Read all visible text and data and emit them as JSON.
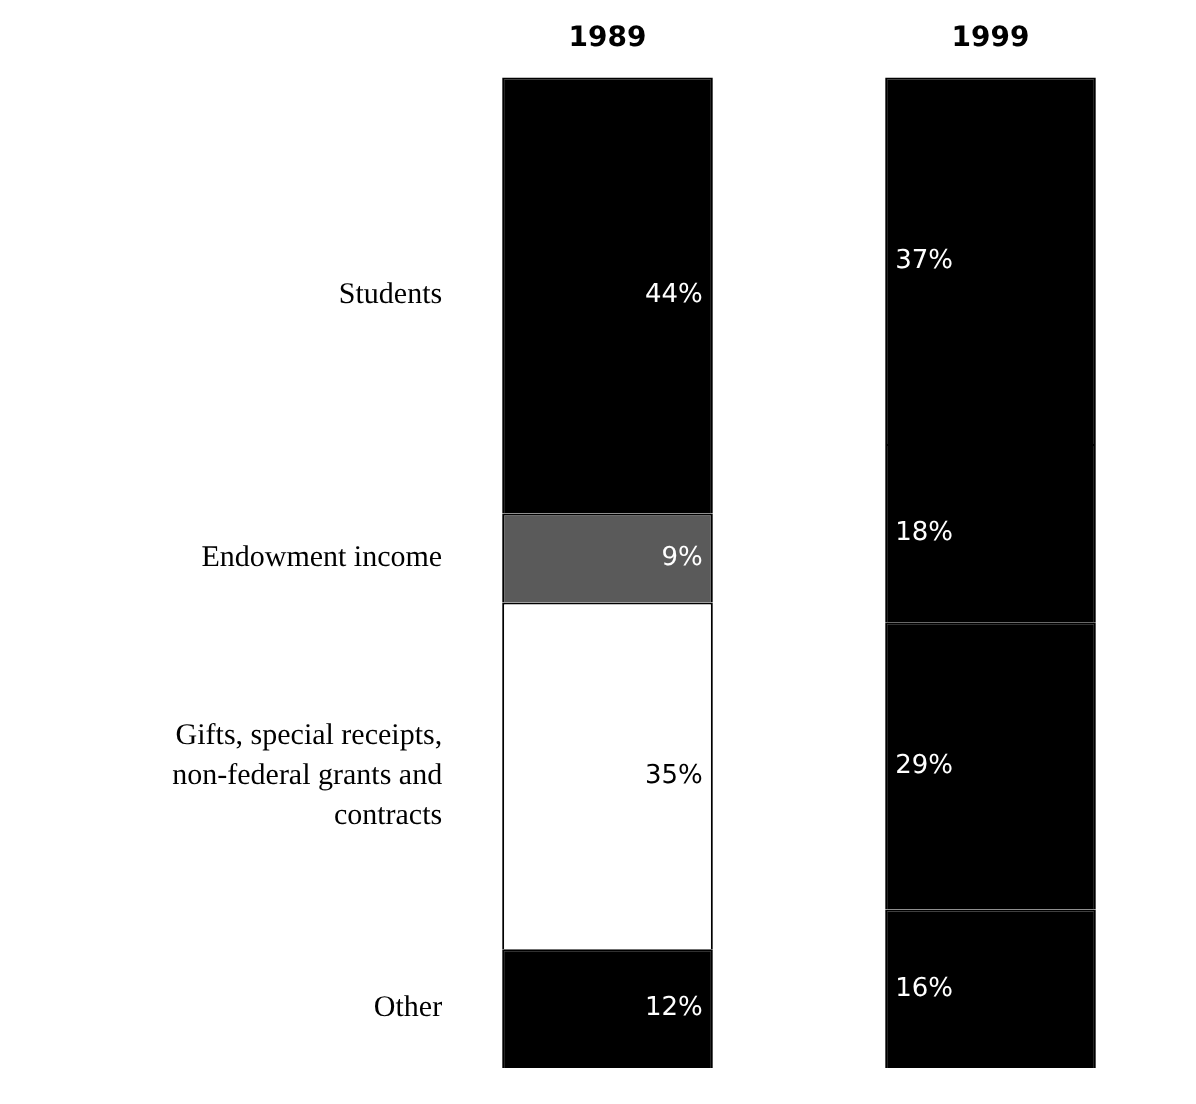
{
  "chart_data": {
    "type": "bar",
    "stacked": true,
    "categories": [
      "1989",
      "1999"
    ],
    "series": [
      {
        "name": "Other",
        "colors": [
          "#000000",
          "#000000"
        ],
        "values": [
          12,
          16
        ],
        "value_labels": [
          "12%",
          "16%"
        ]
      },
      {
        "name": "Gifts, special receipts, non-federal grants and contracts",
        "colors": [
          "#ffffff",
          "#000000"
        ],
        "values": [
          35,
          29
        ],
        "value_labels": [
          "35%",
          "29%"
        ]
      },
      {
        "name": "Endowment income",
        "colors": [
          "#5a5a5a",
          "#000000"
        ],
        "values": [
          9,
          18
        ],
        "value_labels": [
          "9%",
          "18%"
        ]
      },
      {
        "name": "Students",
        "colors": [
          "#000000",
          "#000000"
        ],
        "values": [
          44,
          37
        ],
        "value_labels": [
          "44%",
          "37%"
        ]
      }
    ],
    "grid": false,
    "legend": false
  }
}
